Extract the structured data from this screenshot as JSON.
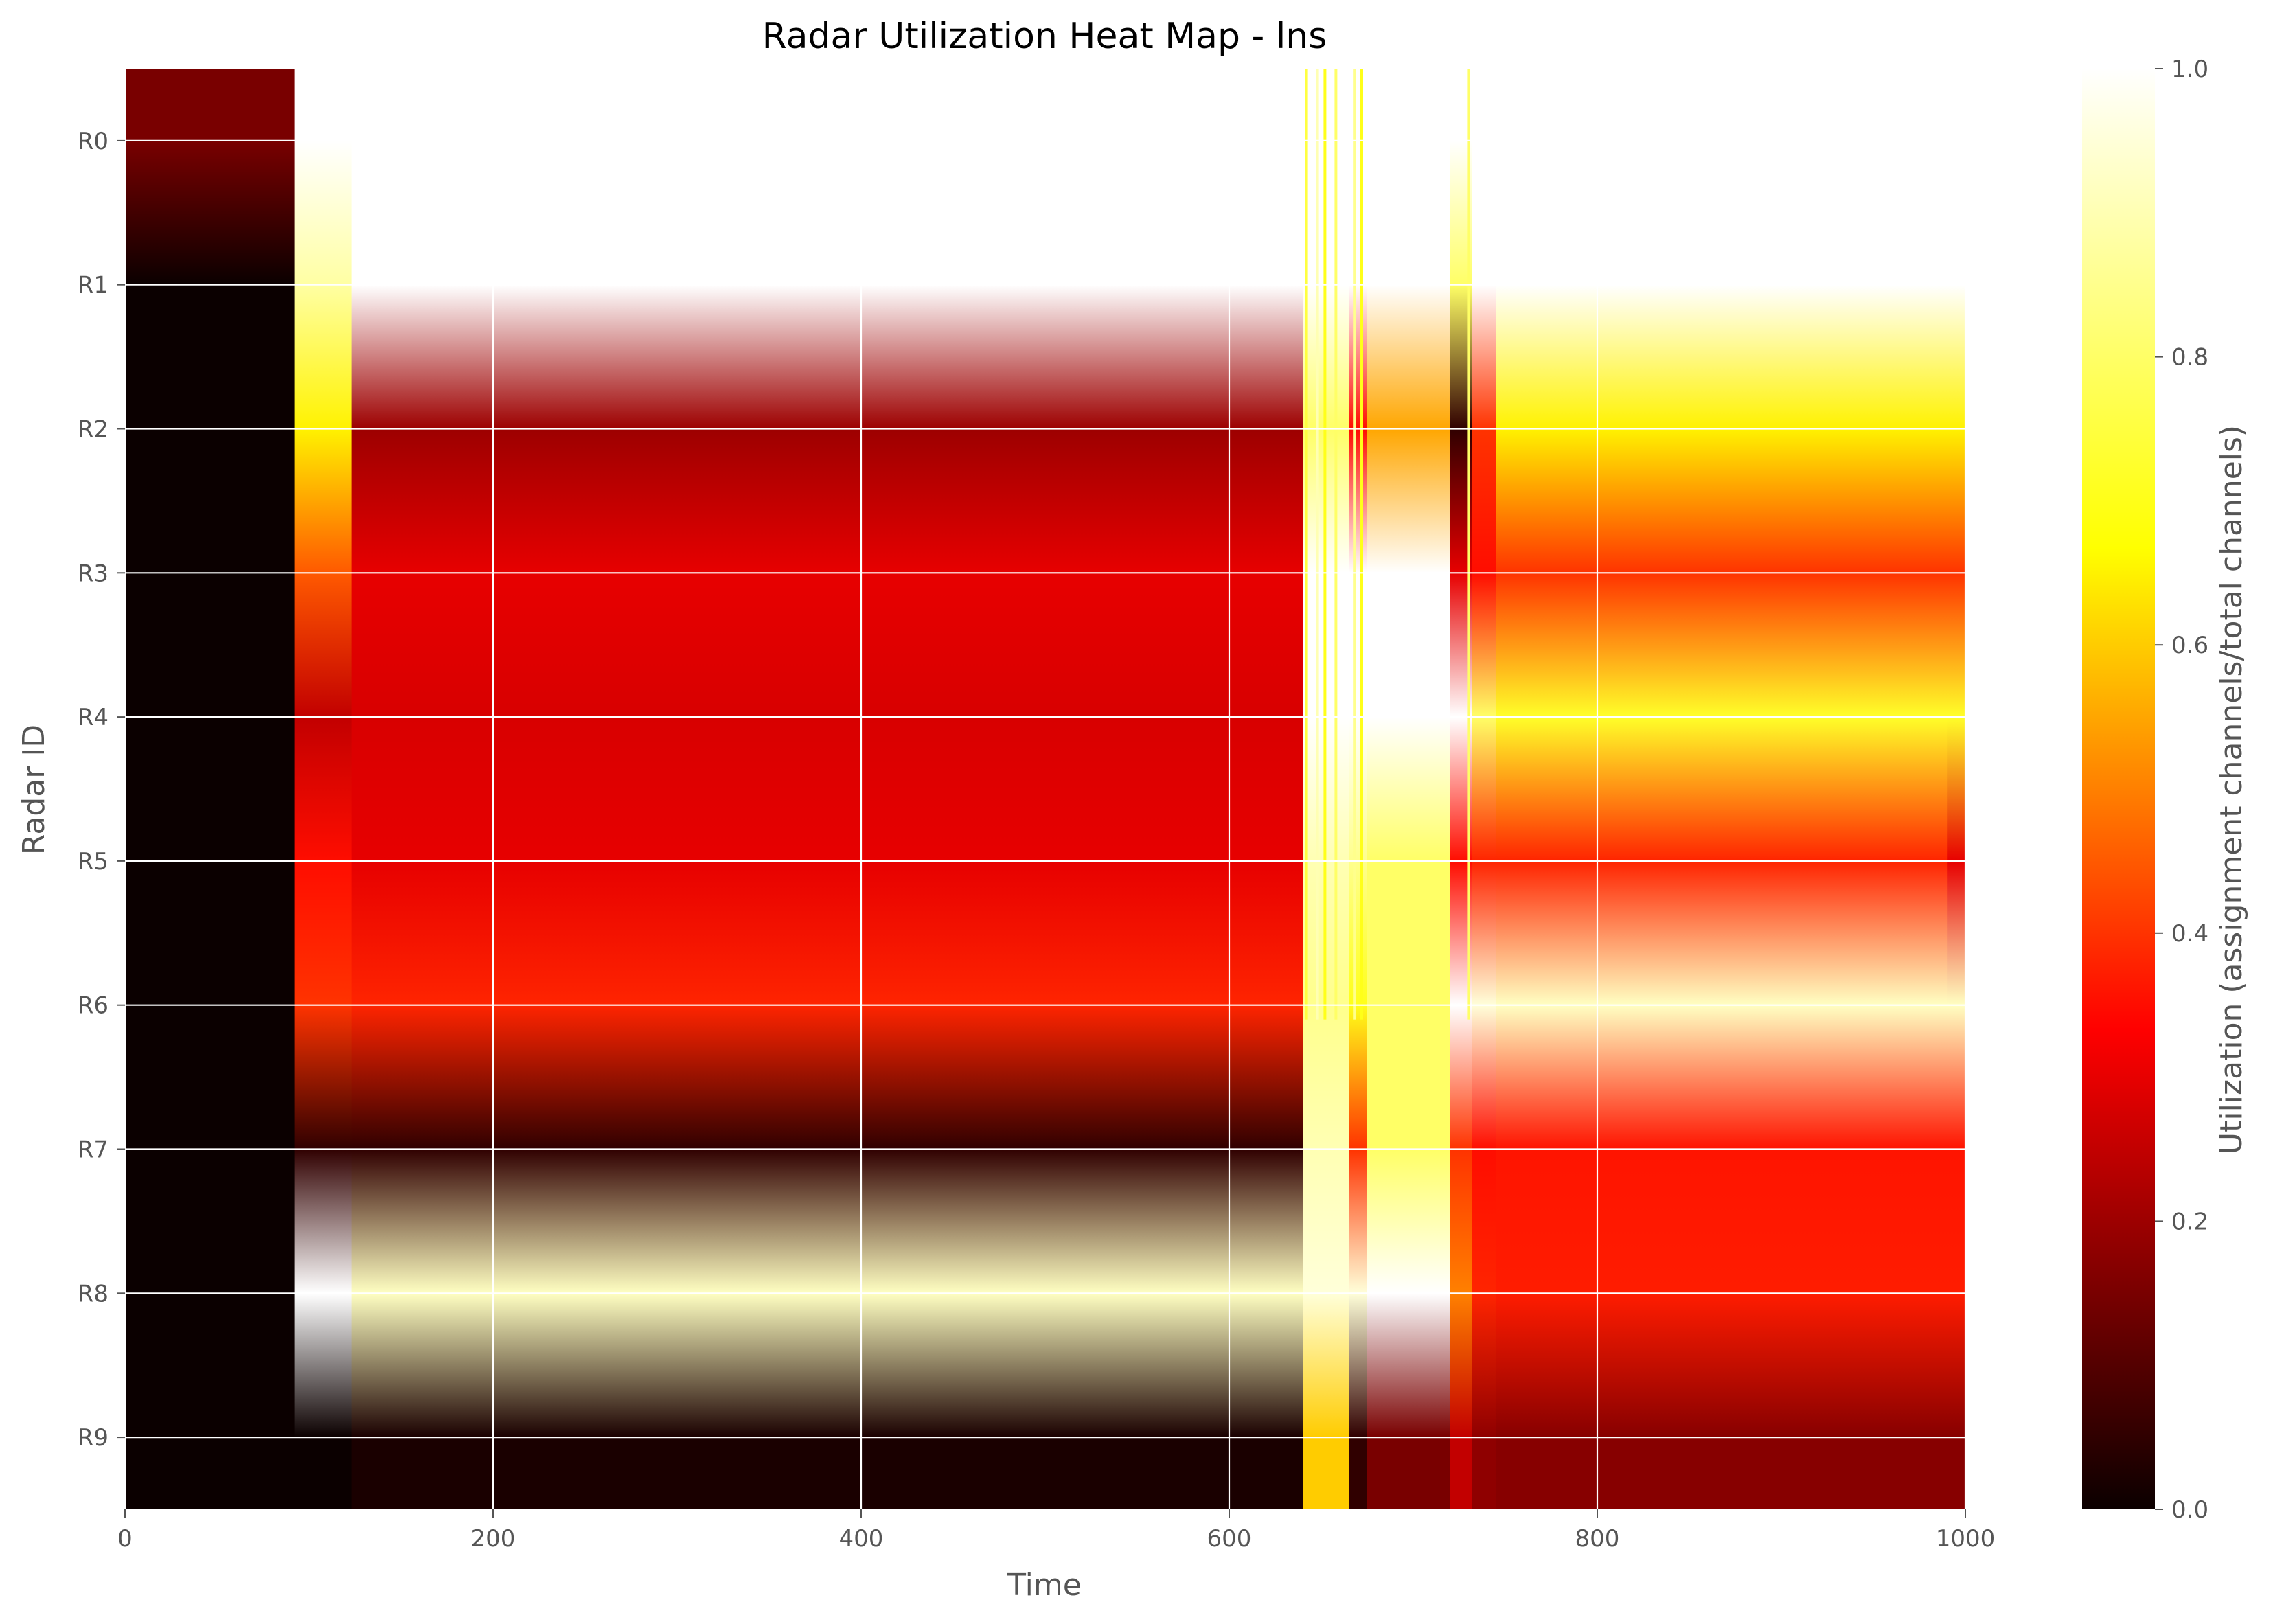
{
  "chart_data": {
    "type": "heatmap",
    "title": "Radar Utilization Heat Map - lns",
    "xlabel": "Time",
    "ylabel": "Radar ID",
    "colorbar_label": "Utilization (assignment channels/total channels)",
    "colormap": "hot",
    "colormap_stops": [
      "#0b0000",
      "#ff0000",
      "#ffff00",
      "#ffffff"
    ],
    "xlim": [
      0,
      1000
    ],
    "ylim": [
      0,
      1
    ],
    "grid": true,
    "x_ticks": [
      0,
      200,
      400,
      600,
      800,
      1000
    ],
    "colorbar_ticks": [
      0.0,
      0.2,
      0.4,
      0.6,
      0.8,
      1.0
    ],
    "colorbar_tick_labels": [
      "0.0",
      "0.2",
      "0.4",
      "0.6",
      "0.8",
      "1.0"
    ],
    "radars": [
      "R0",
      "R1",
      "R2",
      "R3",
      "R4",
      "R5",
      "R6",
      "R7",
      "R8",
      "R9"
    ],
    "segments": [
      {
        "t_start": 0,
        "t_end": 92,
        "values": [
          0.15,
          0.0,
          0.0,
          0.0,
          0.0,
          0.0,
          0.0,
          0.0,
          0.0,
          0.0
        ]
      },
      {
        "t_start": 92,
        "t_end": 123,
        "values": [
          1.0,
          0.88,
          0.65,
          0.45,
          0.25,
          0.35,
          0.4,
          0.05,
          1.0,
          0.0
        ]
      },
      {
        "t_start": 123,
        "t_end": 640,
        "values": [
          1.0,
          1.0,
          0.2,
          0.3,
          0.28,
          0.3,
          0.38,
          0.05,
          0.92,
          0.02
        ]
      },
      {
        "t_start": 640,
        "t_end": 665,
        "values": [
          1.0,
          1.0,
          0.8,
          1.0,
          1.0,
          0.9,
          0.85,
          0.9,
          0.95,
          0.6
        ]
      },
      {
        "t_start": 665,
        "t_end": 675,
        "values": [
          1.0,
          1.0,
          0.35,
          1.0,
          1.0,
          0.85,
          0.7,
          0.4,
          0.95,
          0.05
        ]
      },
      {
        "t_start": 675,
        "t_end": 720,
        "values": [
          1.0,
          1.0,
          0.55,
          1.0,
          1.0,
          0.8,
          0.8,
          0.8,
          1.0,
          0.15
        ]
      },
      {
        "t_start": 720,
        "t_end": 732,
        "values": [
          1.0,
          0.8,
          0.05,
          0.3,
          1.0,
          0.35,
          1.0,
          0.4,
          0.5,
          0.25
        ]
      },
      {
        "t_start": 732,
        "t_end": 745,
        "values": [
          1.0,
          1.0,
          0.4,
          0.35,
          0.8,
          0.38,
          0.95,
          0.35,
          0.38,
          0.18
        ]
      },
      {
        "t_start": 745,
        "t_end": 990,
        "values": [
          1.0,
          1.0,
          0.65,
          0.4,
          0.72,
          0.38,
          0.92,
          0.36,
          0.37,
          0.17
        ]
      },
      {
        "t_start": 990,
        "t_end": 1000,
        "values": [
          1.0,
          1.0,
          0.65,
          0.4,
          0.72,
          0.3,
          0.92,
          0.36,
          0.37,
          0.17
        ]
      }
    ],
    "spikes": [
      {
        "t": 642,
        "value": 0.75
      },
      {
        "t": 648,
        "value": 0.9
      },
      {
        "t": 652,
        "value": 0.7
      },
      {
        "t": 658,
        "value": 0.8
      },
      {
        "t": 668,
        "value": 0.85
      },
      {
        "t": 672,
        "value": 0.7
      },
      {
        "t": 730,
        "value": 0.8
      }
    ]
  }
}
